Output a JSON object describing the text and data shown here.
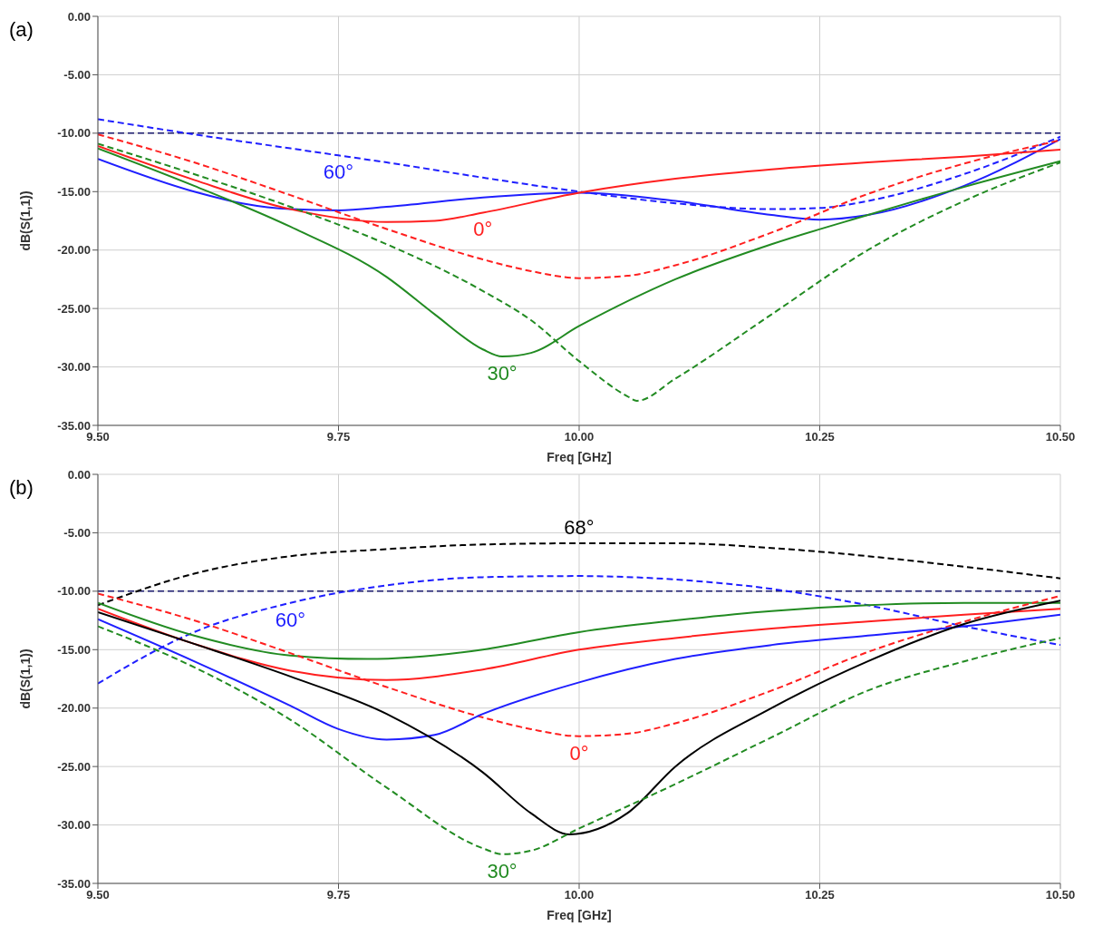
{
  "chart_data": [
    {
      "type": "line",
      "title": "(a)",
      "xlabel": "Freq [GHz]",
      "ylabel": "dB(S(1,1))",
      "xlim": [
        9.5,
        10.5
      ],
      "ylim": [
        -35,
        0
      ],
      "xticks": [
        {
          "value": 9.5,
          "label": "9.50"
        },
        {
          "value": 9.75,
          "label": "9.75"
        },
        {
          "value": 10,
          "label": "10.00"
        },
        {
          "value": 10.25,
          "label": "10.25"
        },
        {
          "value": 10.5,
          "label": "10.50"
        }
      ],
      "yticks": [
        {
          "value": -35,
          "label": "-35.00"
        },
        {
          "value": -30,
          "label": "-30.00"
        },
        {
          "value": -25,
          "label": "-25.00"
        },
        {
          "value": -20,
          "label": "-20.00"
        },
        {
          "value": -15,
          "label": "-15.00"
        },
        {
          "value": -10,
          "label": "-10.00"
        },
        {
          "value": -5,
          "label": "-5.00"
        },
        {
          "value": 0,
          "label": "0.00"
        }
      ],
      "grid": true,
      "marker": "none",
      "ref_lines": [
        {
          "axis": "y",
          "value": -10,
          "color": "#1a1a6e",
          "line_style": "dashed"
        }
      ],
      "series": [
        {
          "color": "#1f1fff",
          "line_style": "dashed",
          "x": [
            9.5,
            9.6,
            9.7,
            9.75,
            9.8,
            9.9,
            10.0,
            10.1,
            10.2,
            10.25,
            10.3,
            10.4,
            10.5
          ],
          "values": [
            -8.8,
            -10.1,
            -11.3,
            -11.9,
            -12.5,
            -13.8,
            -15.0,
            -16.0,
            -16.5,
            -16.4,
            -15.8,
            -13.5,
            -10.3
          ]
        },
        {
          "color": "#1f1fff",
          "line_style": "solid",
          "x": [
            9.5,
            9.6,
            9.65,
            9.7,
            9.75,
            9.8,
            9.9,
            10.0,
            10.1,
            10.2,
            10.25,
            10.3,
            10.4,
            10.5
          ],
          "values": [
            -12.2,
            -15.0,
            -16.0,
            -16.5,
            -16.6,
            -16.3,
            -15.5,
            -15.1,
            -15.8,
            -17.0,
            -17.4,
            -17.0,
            -14.5,
            -10.5
          ]
        },
        {
          "color": "#ff1f1f",
          "line_style": "solid",
          "x": [
            9.5,
            9.6,
            9.7,
            9.8,
            9.85,
            9.9,
            10.0,
            10.1,
            10.2,
            10.3,
            10.4,
            10.5
          ],
          "values": [
            -11.1,
            -14.0,
            -16.5,
            -17.6,
            -17.5,
            -16.8,
            -15.1,
            -13.9,
            -13.1,
            -12.5,
            -12.0,
            -11.4
          ]
        },
        {
          "color": "#ff1f1f",
          "line_style": "dashed",
          "x": [
            9.5,
            9.6,
            9.7,
            9.8,
            9.9,
            9.95,
            10.0,
            10.05,
            10.1,
            10.2,
            10.3,
            10.4,
            10.5
          ],
          "values": [
            -10.1,
            -12.5,
            -15.3,
            -18.2,
            -20.8,
            -21.8,
            -22.4,
            -22.2,
            -21.3,
            -18.5,
            -15.2,
            -12.6,
            -10.6
          ]
        },
        {
          "color": "#228b22",
          "line_style": "solid",
          "x": [
            9.5,
            9.6,
            9.7,
            9.8,
            9.85,
            9.9,
            9.92,
            9.95,
            10.0,
            10.1,
            10.2,
            10.3,
            10.4,
            10.5
          ],
          "values": [
            -11.3,
            -14.5,
            -18.0,
            -22.3,
            -25.5,
            -28.5,
            -29.1,
            -28.8,
            -26.5,
            -22.5,
            -19.5,
            -17.0,
            -14.6,
            -12.4
          ]
        },
        {
          "color": "#228b22",
          "line_style": "dashed",
          "x": [
            9.5,
            9.6,
            9.7,
            9.8,
            9.9,
            9.95,
            10.0,
            10.05,
            10.06,
            10.1,
            10.2,
            10.3,
            10.4,
            10.5
          ],
          "values": [
            -10.9,
            -13.5,
            -16.3,
            -19.5,
            -23.5,
            -26.0,
            -29.5,
            -32.5,
            -32.9,
            -31.0,
            -25.5,
            -20.0,
            -15.8,
            -12.5
          ]
        }
      ],
      "annotations": [
        {
          "text": "60°",
          "x": 9.75,
          "y": -11.9
        },
        {
          "text": "0°",
          "x": 9.9,
          "y": -16.8
        },
        {
          "text": "30°",
          "x": 9.92,
          "y": -29.1
        }
      ]
    },
    {
      "type": "line",
      "title": "(b)",
      "xlabel": "Freq [GHz]",
      "ylabel": "dB(S(1,1))",
      "xlim": [
        9.5,
        10.5
      ],
      "ylim": [
        -35,
        0
      ],
      "xticks": [
        {
          "value": 9.5,
          "label": "9.50"
        },
        {
          "value": 9.75,
          "label": "9.75"
        },
        {
          "value": 10,
          "label": "10.00"
        },
        {
          "value": 10.25,
          "label": "10.25"
        },
        {
          "value": 10.5,
          "label": "10.50"
        }
      ],
      "yticks": [
        {
          "value": -35,
          "label": "-35.00"
        },
        {
          "value": -30,
          "label": "-30.00"
        },
        {
          "value": -25,
          "label": "-25.00"
        },
        {
          "value": -20,
          "label": "-20.00"
        },
        {
          "value": -15,
          "label": "-15.00"
        },
        {
          "value": -10,
          "label": "-10.00"
        },
        {
          "value": -5,
          "label": "-5.00"
        },
        {
          "value": 0,
          "label": "0.00"
        }
      ],
      "grid": true,
      "marker": "none",
      "ref_lines": [
        {
          "axis": "y",
          "value": -10,
          "color": "#1a1a6e",
          "line_style": "dashed"
        }
      ],
      "series": [
        {
          "color": "#000000",
          "line_style": "dashed",
          "x": [
            9.5,
            9.6,
            9.7,
            9.8,
            9.9,
            10.0,
            10.1,
            10.2,
            10.3,
            10.4,
            10.5
          ],
          "values": [
            -11.2,
            -8.5,
            -7.0,
            -6.4,
            -6.0,
            -5.9,
            -5.9,
            -6.3,
            -7.0,
            -7.9,
            -8.9
          ]
        },
        {
          "color": "#1f1fff",
          "line_style": "dashed",
          "x": [
            9.5,
            9.6,
            9.7,
            9.8,
            9.9,
            10.0,
            10.1,
            10.2,
            10.3,
            10.4,
            10.5
          ],
          "values": [
            -17.9,
            -13.5,
            -11.0,
            -9.5,
            -8.8,
            -8.7,
            -9.0,
            -9.8,
            -11.2,
            -13.0,
            -14.6
          ]
        },
        {
          "color": "#228b22",
          "line_style": "solid",
          "x": [
            9.5,
            9.6,
            9.7,
            9.78,
            9.9,
            10.0,
            10.1,
            10.2,
            10.3,
            10.4,
            10.5
          ],
          "values": [
            -11.0,
            -13.8,
            -15.5,
            -15.8,
            -15.0,
            -13.5,
            -12.5,
            -11.7,
            -11.2,
            -11.0,
            -11.0
          ]
        },
        {
          "color": "#ff1f1f",
          "line_style": "solid",
          "x": [
            9.5,
            9.6,
            9.7,
            9.8,
            9.9,
            10.0,
            10.1,
            10.2,
            10.3,
            10.4,
            10.5
          ],
          "values": [
            -11.5,
            -14.5,
            -16.8,
            -17.6,
            -16.7,
            -15.0,
            -14.0,
            -13.2,
            -12.6,
            -12.0,
            -11.5
          ]
        },
        {
          "color": "#ff1f1f",
          "line_style": "dashed",
          "x": [
            9.5,
            9.6,
            9.7,
            9.8,
            9.9,
            9.95,
            10.0,
            10.05,
            10.1,
            10.2,
            10.3,
            10.4,
            10.5
          ],
          "values": [
            -10.2,
            -12.5,
            -15.3,
            -18.2,
            -20.8,
            -21.8,
            -22.4,
            -22.2,
            -21.3,
            -18.5,
            -15.2,
            -12.6,
            -10.4
          ]
        },
        {
          "color": "#1f1fff",
          "line_style": "solid",
          "x": [
            9.5,
            9.6,
            9.7,
            9.75,
            9.8,
            9.85,
            9.9,
            10.0,
            10.1,
            10.2,
            10.3,
            10.4,
            10.5
          ],
          "values": [
            -12.4,
            -16.0,
            -19.8,
            -21.8,
            -22.7,
            -22.3,
            -20.5,
            -17.8,
            -15.8,
            -14.6,
            -13.8,
            -13.0,
            -12.0
          ]
        },
        {
          "color": "#000000",
          "line_style": "solid",
          "x": [
            9.5,
            9.6,
            9.7,
            9.8,
            9.9,
            9.95,
            9.99,
            10.05,
            10.1,
            10.2,
            10.3,
            10.4,
            10.5
          ],
          "values": [
            -11.8,
            -14.5,
            -17.3,
            -20.5,
            -25.5,
            -29.0,
            -30.8,
            -29.0,
            -25.0,
            -20.0,
            -16.0,
            -12.8,
            -10.8
          ]
        },
        {
          "color": "#228b22",
          "line_style": "dashed",
          "x": [
            9.5,
            9.6,
            9.7,
            9.8,
            9.9,
            9.92,
            9.95,
            10.0,
            10.1,
            10.2,
            10.3,
            10.4,
            10.5
          ],
          "values": [
            -13.0,
            -16.5,
            -21.0,
            -26.8,
            -32.0,
            -32.5,
            -32.2,
            -30.3,
            -26.5,
            -22.5,
            -18.5,
            -16.0,
            -14.0
          ]
        }
      ],
      "annotations": [
        {
          "text": "68°",
          "x": 10.0,
          "y": -5.9
        },
        {
          "text": "60°",
          "x": 9.7,
          "y": -11.0
        },
        {
          "text": "0°",
          "x": 10.0,
          "y": -22.4
        },
        {
          "text": "30°",
          "x": 9.92,
          "y": -32.5
        }
      ]
    }
  ]
}
